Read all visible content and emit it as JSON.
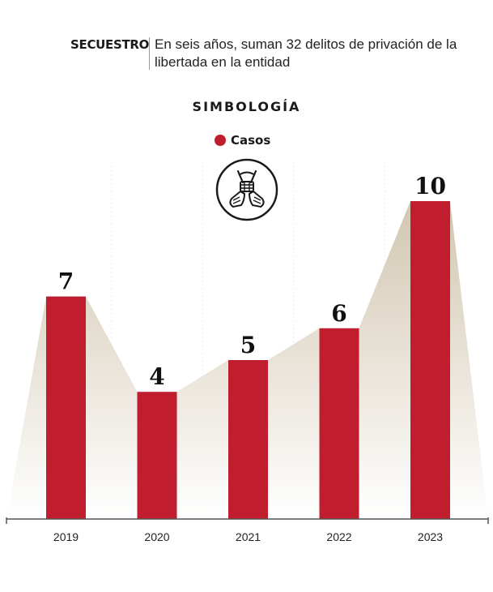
{
  "header": {
    "tag": "SECUESTRO",
    "description": "En seis años, suman 32 delitos de privación de la libertada en la entidad"
  },
  "legend": {
    "title": "SIMBOLOGÍA",
    "items": [
      {
        "label": "Casos",
        "color": "#c01e2e"
      }
    ],
    "icon": "tied-hands-icon"
  },
  "colors": {
    "bar": "#c01e2e",
    "area_top": "#d2c6b0",
    "area_bottom": "#ffffff",
    "axis": "#555555"
  },
  "chart_data": {
    "type": "bar",
    "categories": [
      "2019",
      "2020",
      "2021",
      "2022",
      "2023"
    ],
    "values": [
      7,
      4,
      5,
      6,
      10
    ],
    "series": [
      {
        "name": "Casos",
        "values": [
          7,
          4,
          5,
          6,
          10
        ]
      }
    ],
    "title": "",
    "xlabel": "",
    "ylabel": "",
    "ylim": [
      0,
      10
    ],
    "grid": false,
    "data_labels": true,
    "legend_position": "top-center"
  }
}
